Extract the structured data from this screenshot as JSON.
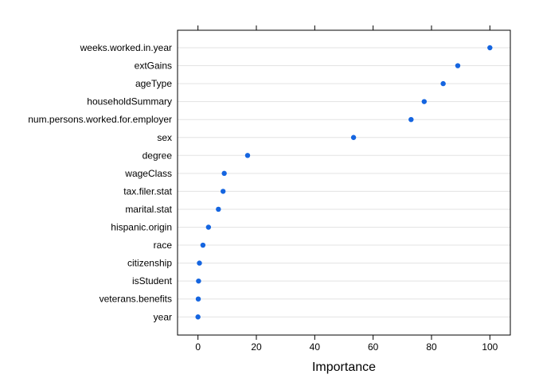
{
  "chart_data": {
    "type": "scatter",
    "subtype": "dotplot",
    "title": "",
    "xlabel": "Importance",
    "ylabel": "",
    "xlim": [
      -7,
      107
    ],
    "xticks": [
      0,
      20,
      40,
      60,
      80,
      100
    ],
    "grid": true,
    "point_color": "#1565e0",
    "gridline_color": "#e3e3e3",
    "categories": [
      "weeks.worked.in.year",
      "extGains",
      "ageType",
      "householdSummary",
      "num.persons.worked.for.employer",
      "sex",
      "degree",
      "wageClass",
      "tax.filer.stat",
      "marital.stat",
      "hispanic.origin",
      "race",
      "citizenship",
      "isStudent",
      "veterans.benefits",
      "year"
    ],
    "values": [
      100,
      89,
      84,
      77.5,
      73,
      53.3,
      17,
      9,
      8.6,
      7,
      3.6,
      1.7,
      0.5,
      0.2,
      0.1,
      0
    ]
  }
}
